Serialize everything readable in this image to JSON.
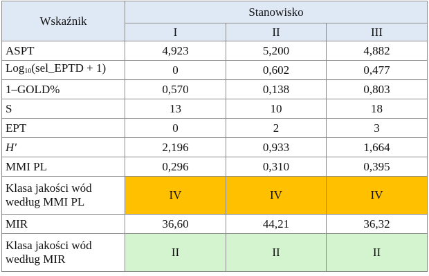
{
  "header": {
    "indicator": "Wskaźnik",
    "site": "Stanowisko",
    "sites": [
      "I",
      "II",
      "III"
    ],
    "fill": "#dfe9f6"
  },
  "table": {
    "rows": [
      {
        "label": "ASPT",
        "values": [
          "4,923",
          "5,200",
          "4,882"
        ]
      },
      {
        "label": [
          "Log",
          "10",
          "(sel_EPTD + 1)"
        ],
        "values": [
          "0",
          "0,602",
          "0,477"
        ]
      },
      {
        "label": "1–GOLD%",
        "values": [
          "0,570",
          "0,138",
          "0,803"
        ]
      },
      {
        "label": "S",
        "values": [
          "13",
          "10",
          "18"
        ]
      },
      {
        "label": "EPT",
        "values": [
          "0",
          "2",
          "3"
        ]
      },
      {
        "label": "H′",
        "italic": true,
        "values": [
          "2,196",
          "0,933",
          "1,664"
        ]
      },
      {
        "label": "MMI PL",
        "values": [
          "0,296",
          "0,310",
          "0,395"
        ]
      },
      {
        "label": "Klasa jakości wód według MMI PL",
        "values": [
          "IV",
          "IV",
          "IV"
        ],
        "fill": "#ffc000"
      },
      {
        "label": "MIR",
        "values": [
          "36,60",
          "44,21",
          "36,32"
        ]
      },
      {
        "label": "Klasa jakości wód według MIR",
        "values": [
          "II",
          "II",
          "II"
        ],
        "fill": "#d4f4cf"
      }
    ]
  }
}
